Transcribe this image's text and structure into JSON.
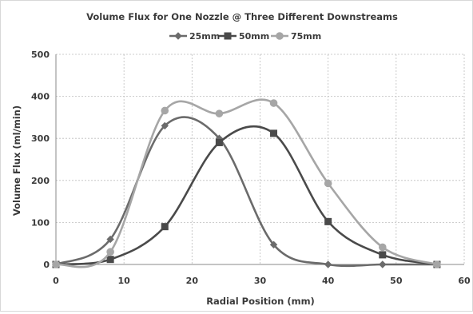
{
  "chart_data": {
    "type": "line",
    "title": "Volume Flux for One Nozzle @ Three Different Downstreams",
    "xlabel": "Radial Position (mm)",
    "ylabel": "Volume Flux (ml/min)",
    "xlim": [
      0,
      60
    ],
    "ylim": [
      0,
      500
    ],
    "xticks": [
      0,
      10,
      20,
      30,
      40,
      50,
      60
    ],
    "yticks": [
      0,
      100,
      200,
      300,
      400,
      500
    ],
    "grid": true,
    "smooth": true,
    "legend_position": "top",
    "series": [
      {
        "name": "25mm",
        "color": "#6b6b6b",
        "marker": "diamond",
        "x": [
          0,
          8,
          16,
          24,
          32,
          40,
          48,
          56
        ],
        "y": [
          0,
          60,
          330,
          300,
          47,
          0,
          0,
          0
        ]
      },
      {
        "name": "50mm",
        "color": "#4a4a4a",
        "marker": "square",
        "x": [
          0,
          8,
          16,
          24,
          32,
          40,
          48,
          56
        ],
        "y": [
          0,
          12,
          90,
          290,
          312,
          102,
          23,
          0
        ]
      },
      {
        "name": "75mm",
        "color": "#a6a6a6",
        "marker": "circle",
        "x": [
          0,
          8,
          16,
          24,
          32,
          40,
          48,
          56
        ],
        "y": [
          0,
          30,
          366,
          359,
          384,
          193,
          41,
          0
        ]
      }
    ]
  }
}
